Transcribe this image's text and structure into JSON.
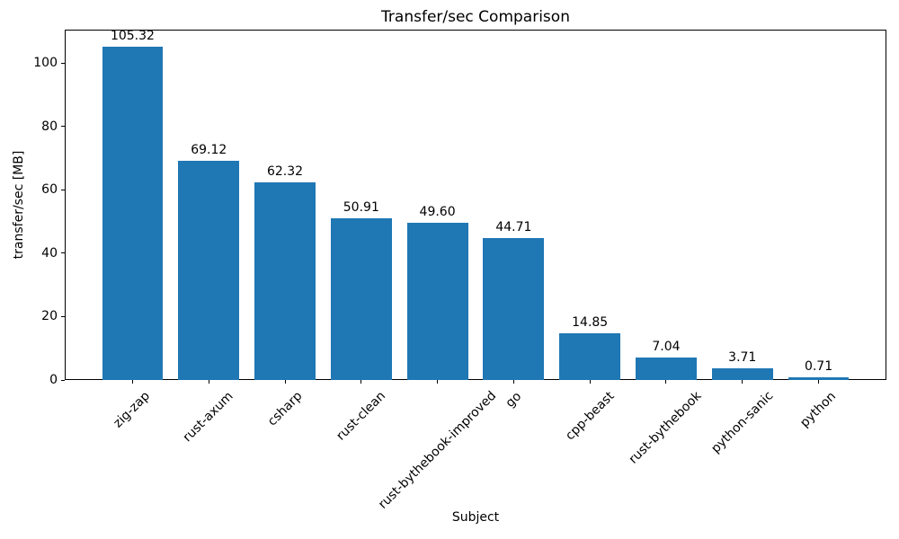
{
  "figure": {
    "background": "#ffffff",
    "text_color": "#000000",
    "spine_color": "#000000"
  },
  "chart_data": {
    "type": "bar",
    "title": "Transfer/sec Comparison",
    "xlabel": "Subject",
    "ylabel": "transfer/sec [MB]",
    "categories": [
      "zig-zap",
      "rust-axum",
      "csharp",
      "rust-clean",
      "rust-bythebook-improved",
      "go",
      "cpp-beast",
      "rust-bythebook",
      "python-sanic",
      "python"
    ],
    "values": [
      105.32,
      69.12,
      62.32,
      50.91,
      49.6,
      44.71,
      14.85,
      7.04,
      3.71,
      0.71
    ],
    "value_labels": [
      "105.32",
      "69.12",
      "62.32",
      "50.91",
      "49.60",
      "44.71",
      "14.85",
      "7.04",
      "3.71",
      "0.71"
    ],
    "yticks": [
      0,
      20,
      40,
      60,
      80,
      100
    ],
    "ylim": [
      0,
      110.59
    ],
    "bar_color": "#1f77b4",
    "bar_width_fraction": 0.8,
    "x_tick_rotation_deg": 45,
    "grid": false,
    "legend": null
  }
}
